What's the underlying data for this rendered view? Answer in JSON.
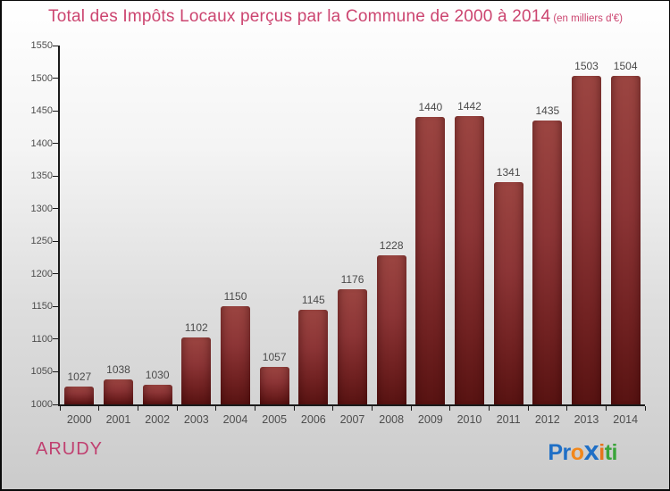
{
  "title": {
    "main": "Total des Impôts Locaux perçus par la Commune de 2000 à 2014",
    "suffix": "(en milliers d'€)"
  },
  "chart_data": {
    "type": "bar",
    "title": "Total des Impôts Locaux perçus par la Commune de 2000 à 2014 (en milliers d'€)",
    "categories": [
      "2000",
      "2001",
      "2002",
      "2003",
      "2004",
      "2005",
      "2006",
      "2007",
      "2008",
      "2009",
      "2010",
      "2011",
      "2012",
      "2013",
      "2014"
    ],
    "values": [
      1027,
      1038,
      1030,
      1102,
      1150,
      1057,
      1145,
      1176,
      1228,
      1440,
      1442,
      1341,
      1435,
      1503,
      1504
    ],
    "xlabel": "",
    "ylabel": "",
    "ylim": [
      1000,
      1550
    ],
    "ytick_step": 50,
    "grid": false,
    "legend": "none",
    "value_labels": true,
    "bar_color_top": "#9b4541",
    "bar_color_bottom": "#581312"
  },
  "footer": {
    "commune": "ARUDY",
    "logo_letters": [
      {
        "ch": "P",
        "color": "#1f6fc6",
        "big": false
      },
      {
        "ch": "r",
        "color": "#1f6fc6",
        "big": false
      },
      {
        "ch": "o",
        "color": "#f2881c",
        "big": false
      },
      {
        "ch": "x",
        "color": "#1f6fc6",
        "big": true
      },
      {
        "ch": "i",
        "color": "#e8731c",
        "big": false
      },
      {
        "ch": "t",
        "color": "#3aa43a",
        "big": false
      },
      {
        "ch": "i",
        "color": "#3aa43a",
        "big": false
      }
    ]
  },
  "colors": {
    "title": "#cc4570",
    "commune": "#c04070",
    "axis": "#1a1a1a",
    "tick_label": "#4d4d4d",
    "value_label": "#4a4a4a"
  }
}
